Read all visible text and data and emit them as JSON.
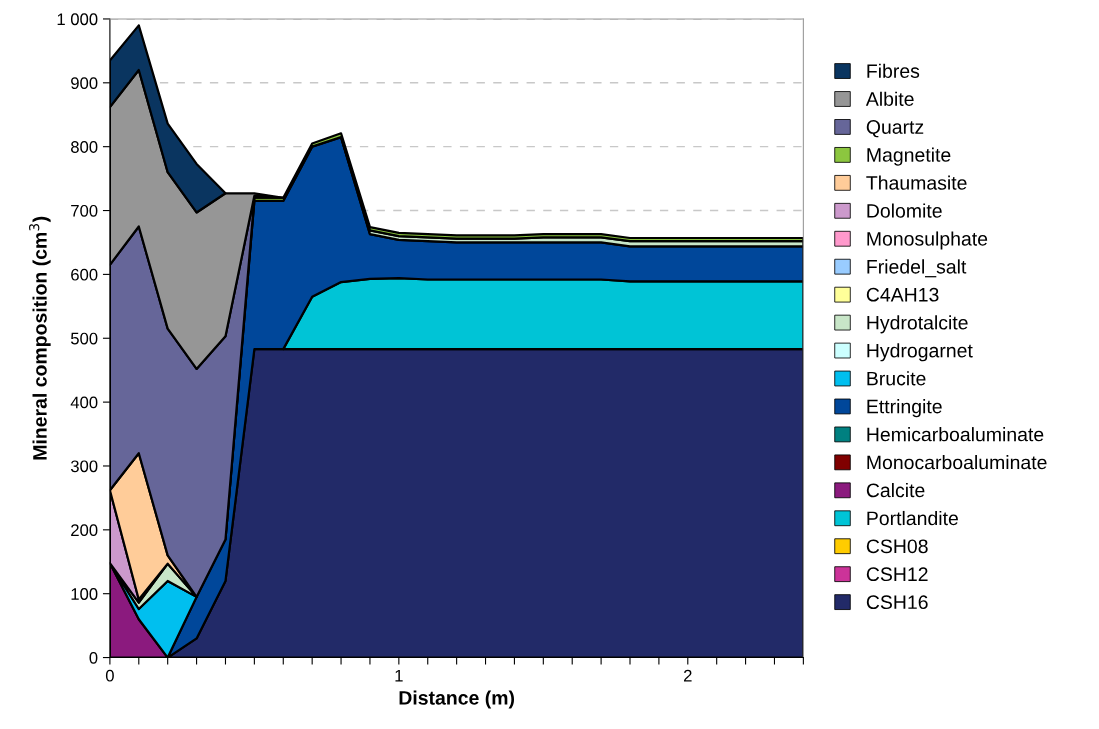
{
  "chart_data": {
    "type": "area",
    "stacked": true,
    "xlabel": "Distance (m)",
    "ylabel": "Mineral composition (cm$^{3}$)",
    "x": [
      0,
      0.1,
      0.2,
      0.3,
      0.4,
      0.5,
      0.6,
      0.7,
      0.8,
      0.9,
      1.0,
      1.1,
      1.2,
      1.3,
      1.4,
      1.5,
      1.6,
      1.7,
      1.8,
      1.9,
      2.0,
      2.1,
      2.2,
      2.3,
      2.4
    ],
    "xlim": [
      0,
      2.4
    ],
    "ylim": [
      0,
      1000
    ],
    "xticks": [
      0,
      {
        "value": 0.1,
        "label": null
      },
      {
        "value": 0.2,
        "label": null
      },
      {
        "value": 0.3,
        "label": null
      },
      {
        "value": 0.4,
        "label": null
      },
      {
        "value": 0.5,
        "label": null
      },
      {
        "value": 0.6,
        "label": null
      },
      {
        "value": 0.7,
        "label": null
      },
      {
        "value": 0.8,
        "label": null
      },
      {
        "value": 0.9,
        "label": null
      },
      1,
      {
        "value": 1.1,
        "label": null
      },
      {
        "value": 1.2,
        "label": null
      },
      {
        "value": 1.3,
        "label": null
      },
      {
        "value": 1.4,
        "label": null
      },
      {
        "value": 1.5,
        "label": null
      },
      {
        "value": 1.6,
        "label": null
      },
      {
        "value": 1.7,
        "label": null
      },
      {
        "value": 1.8,
        "label": null
      },
      {
        "value": 1.9,
        "label": null
      },
      2,
      {
        "value": 2.1,
        "label": null
      },
      {
        "value": 2.2,
        "label": null
      },
      {
        "value": 2.3,
        "label": null
      },
      {
        "value": 2.4,
        "label": null
      }
    ],
    "yticks": [
      0,
      100,
      200,
      300,
      400,
      500,
      600,
      700,
      800,
      900,
      {
        "value": 1000,
        "label": "1 000"
      }
    ],
    "grid": "y",
    "legend": "right",
    "series": [
      {
        "name": "CSH16",
        "color": "#222a68",
        "values": [
          null,
          null,
          0,
          30,
          120,
          483,
          483,
          483,
          483,
          483,
          483,
          483,
          483,
          483,
          483,
          483,
          483,
          483,
          483,
          483,
          483,
          483,
          483,
          483,
          483
        ]
      },
      {
        "name": "CSH12",
        "color": "#cc3399",
        "values": [
          null,
          null,
          null,
          null,
          null,
          null,
          null,
          null,
          null,
          null,
          null,
          null,
          null,
          null,
          null,
          null,
          null,
          null,
          null,
          null,
          null,
          null,
          null,
          null,
          null
        ]
      },
      {
        "name": "CSH08",
        "color": "#ffcc00",
        "values": [
          null,
          null,
          null,
          null,
          null,
          null,
          null,
          null,
          null,
          null,
          null,
          null,
          null,
          null,
          null,
          null,
          null,
          null,
          null,
          null,
          null,
          null,
          null,
          null,
          null
        ]
      },
      {
        "name": "Portlandite",
        "color": "#00c4d6",
        "values": [
          null,
          null,
          null,
          null,
          null,
          null,
          0,
          82,
          105,
          110,
          111,
          109,
          109,
          109,
          109,
          109,
          109,
          109,
          106,
          106,
          106,
          106,
          106,
          106,
          106
        ]
      },
      {
        "name": "Calcite",
        "color": "#8b1a7e",
        "values": [
          148,
          60,
          0,
          null,
          null,
          null,
          null,
          null,
          null,
          null,
          null,
          null,
          null,
          null,
          null,
          null,
          null,
          null,
          null,
          null,
          null,
          null,
          null,
          null,
          null
        ]
      },
      {
        "name": "Monocarboaluminate",
        "color": "#800000",
        "values": [
          null,
          null,
          null,
          null,
          null,
          null,
          null,
          null,
          null,
          null,
          null,
          null,
          null,
          null,
          null,
          null,
          null,
          null,
          null,
          null,
          null,
          null,
          null,
          null,
          null
        ]
      },
      {
        "name": "Hemicarboaluminate",
        "color": "#008080",
        "values": [
          null,
          null,
          null,
          null,
          null,
          null,
          null,
          null,
          null,
          null,
          null,
          null,
          null,
          null,
          null,
          null,
          null,
          null,
          null,
          null,
          null,
          null,
          null,
          null,
          null
        ]
      },
      {
        "name": "Ettringite",
        "color": "#00479a",
        "values": [
          null,
          null,
          0,
          65,
          65,
          232,
          232,
          235,
          227,
          70,
          60,
          60,
          58,
          58,
          58,
          58,
          58,
          58,
          55,
          55,
          55,
          55,
          55,
          55,
          55
        ]
      },
      {
        "name": "Brucite",
        "color": "#00bfef",
        "values": [
          0,
          16,
          120,
          0,
          null,
          null,
          null,
          null,
          null,
          null,
          null,
          null,
          null,
          null,
          null,
          null,
          null,
          null,
          null,
          null,
          null,
          null,
          null,
          null,
          null
        ]
      },
      {
        "name": "Hydrogarnet",
        "color": "#ccffff",
        "values": [
          null,
          null,
          null,
          null,
          null,
          null,
          null,
          null,
          null,
          null,
          null,
          null,
          null,
          null,
          null,
          null,
          null,
          null,
          null,
          null,
          null,
          null,
          null,
          null,
          null
        ]
      },
      {
        "name": "Hydrotalcite",
        "color": "#c8e6c8",
        "values": [
          0,
          10,
          27,
          0,
          null,
          null,
          null,
          null,
          0,
          6,
          6,
          6,
          6,
          6,
          6,
          8,
          8,
          8,
          8,
          8,
          8,
          8,
          8,
          8,
          8
        ]
      },
      {
        "name": "C4AH13",
        "color": "#ffff99",
        "values": [
          null,
          null,
          null,
          null,
          null,
          null,
          null,
          null,
          null,
          null,
          null,
          null,
          null,
          null,
          null,
          null,
          null,
          null,
          null,
          null,
          null,
          null,
          null,
          null,
          null
        ]
      },
      {
        "name": "Friedel_salt",
        "color": "#99ccff",
        "values": [
          null,
          null,
          null,
          null,
          null,
          null,
          null,
          null,
          null,
          null,
          null,
          null,
          null,
          null,
          null,
          null,
          null,
          null,
          null,
          null,
          null,
          null,
          null,
          null,
          null
        ]
      },
      {
        "name": "Monosulphate",
        "color": "#ff99cc",
        "values": [
          null,
          null,
          null,
          null,
          null,
          null,
          null,
          null,
          null,
          null,
          null,
          null,
          null,
          null,
          null,
          null,
          null,
          null,
          null,
          null,
          null,
          null,
          null,
          null,
          null
        ]
      },
      {
        "name": "Dolomite",
        "color": "#cc99cc",
        "values": [
          114,
          5,
          0,
          null,
          null,
          null,
          null,
          null,
          null,
          null,
          null,
          null,
          null,
          null,
          null,
          null,
          null,
          null,
          null,
          null,
          null,
          null,
          null,
          null,
          null
        ]
      },
      {
        "name": "Thaumasite",
        "color": "#ffcc99",
        "values": [
          0,
          229,
          13,
          0,
          null,
          null,
          null,
          null,
          null,
          null,
          null,
          null,
          null,
          null,
          null,
          null,
          null,
          null,
          null,
          null,
          null,
          null,
          null,
          null,
          null
        ]
      },
      {
        "name": "Magnetite",
        "color": "#8cc63f",
        "values": [
          null,
          null,
          null,
          null,
          0,
          5,
          5,
          5,
          6,
          5,
          5,
          5,
          5,
          5,
          5,
          5,
          5,
          5,
          5,
          5,
          5,
          5,
          5,
          5,
          5
        ]
      },
      {
        "name": "Quartz",
        "color": "#666699",
        "values": [
          353,
          355,
          355,
          357,
          318,
          3,
          0,
          null,
          null,
          null,
          null,
          null,
          null,
          null,
          null,
          null,
          null,
          null,
          null,
          null,
          null,
          null,
          null,
          null,
          null
        ]
      },
      {
        "name": "Albite",
        "color": "#969696",
        "values": [
          247,
          245,
          245,
          245,
          224,
          4,
          0,
          null,
          null,
          null,
          null,
          null,
          null,
          null,
          null,
          null,
          null,
          null,
          null,
          null,
          null,
          null,
          null,
          null,
          null
        ]
      },
      {
        "name": "Fibres",
        "color": "#0a3560",
        "values": [
          73,
          70,
          76,
          76,
          0,
          null,
          null,
          null,
          null,
          null,
          null,
          null,
          null,
          null,
          null,
          null,
          null,
          null,
          null,
          null,
          null,
          null,
          null,
          null,
          null
        ]
      }
    ]
  }
}
